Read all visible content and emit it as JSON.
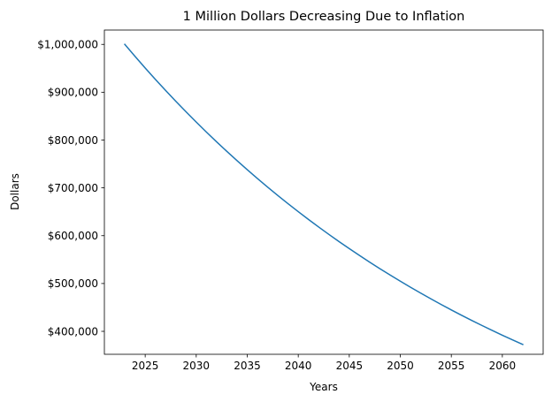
{
  "chart_data": {
    "type": "line",
    "title": "1 Million Dollars Decreasing Due to Inflation",
    "xlabel": "Years",
    "ylabel": "Dollars",
    "xlim": [
      2021.0,
      2064.0
    ],
    "ylim": [
      352000,
      1030000
    ],
    "xticks": [
      2025,
      2030,
      2035,
      2040,
      2045,
      2050,
      2055,
      2060
    ],
    "xtick_labels": [
      "2025",
      "2030",
      "2035",
      "2040",
      "2045",
      "2050",
      "2055",
      "2060"
    ],
    "yticks": [
      400000,
      500000,
      600000,
      700000,
      800000,
      900000,
      1000000
    ],
    "ytick_labels": [
      "$400,000",
      "$500,000",
      "$600,000",
      "$700,000",
      "$800,000",
      "$900,000",
      "$1,000,000"
    ],
    "grid": false,
    "series": [
      {
        "name": "Value",
        "color": "#1f77b4",
        "x": [
          2023,
          2024,
          2025,
          2026,
          2027,
          2028,
          2029,
          2030,
          2031,
          2032,
          2033,
          2034,
          2035,
          2036,
          2037,
          2038,
          2039,
          2040,
          2041,
          2042,
          2043,
          2044,
          2045,
          2046,
          2047,
          2048,
          2049,
          2050,
          2051,
          2052,
          2053,
          2054,
          2055,
          2056,
          2057,
          2058,
          2059,
          2060,
          2061,
          2062
        ],
        "values": [
          1000000,
          975000,
          950625,
          926859,
          903688,
          881096,
          859068,
          837592,
          816652,
          796236,
          776330,
          756922,
          737999,
          719549,
          701560,
          684021,
          666920,
          650247,
          633991,
          618141,
          602688,
          587620,
          572930,
          558606,
          544641,
          531025,
          517749,
          504806,
          492185,
          479881,
          467884,
          456187,
          444782,
          433663,
          422821,
          412251,
          401944,
          391896,
          382099,
          372547
        ]
      }
    ]
  }
}
